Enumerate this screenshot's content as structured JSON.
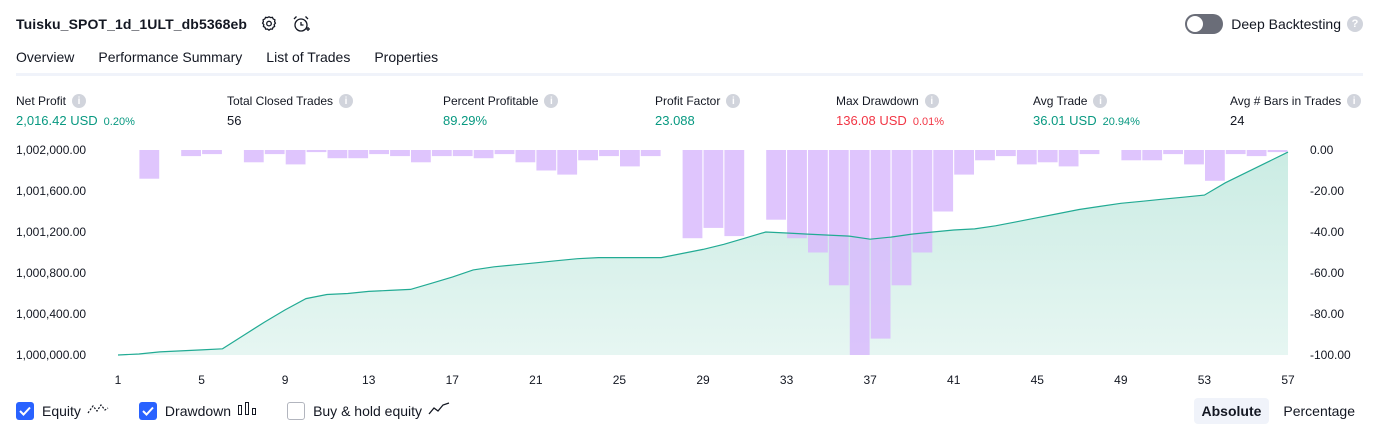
{
  "header": {
    "title": "Tuisku_SPOT_1d_1ULT_db5368eb",
    "settings_icon": "gear-icon",
    "alert_icon": "alarm-clock-plus-icon"
  },
  "deep_backtesting": {
    "label": "Deep Backtesting",
    "enabled": false,
    "help": "?"
  },
  "tabs": [
    {
      "label": "Overview",
      "active": true
    },
    {
      "label": "Performance Summary"
    },
    {
      "label": "List of Trades"
    },
    {
      "label": "Properties"
    }
  ],
  "metrics": {
    "net_profit": {
      "label": "Net Profit",
      "value": "2,016.42 USD",
      "pct": "0.20%"
    },
    "total_closed_trades": {
      "label": "Total Closed Trades",
      "value": "56"
    },
    "percent_profitable": {
      "label": "Percent Profitable",
      "value": "89.29%"
    },
    "profit_factor": {
      "label": "Profit Factor",
      "value": "23.088"
    },
    "max_drawdown": {
      "label": "Max Drawdown",
      "value": "136.08 USD",
      "pct": "0.01%"
    },
    "avg_trade": {
      "label": "Avg Trade",
      "value": "36.01 USD",
      "pct": "20.94%"
    },
    "avg_bars": {
      "label": "Avg # Bars in Trades",
      "value": "24"
    },
    "info_glyph": "i"
  },
  "legend": {
    "equity": {
      "label": "Equity",
      "checked": true
    },
    "drawdown": {
      "label": "Drawdown",
      "checked": true
    },
    "buy_hold": {
      "label": "Buy & hold equity",
      "checked": false
    }
  },
  "mode": {
    "absolute": "Absolute",
    "percentage": "Percentage",
    "active": "absolute"
  },
  "colors": {
    "equity_line": "#22ab94",
    "equity_fill": "#c8ebe2",
    "drawdown_bar": "#d8b8fc",
    "drawdown_overlap": "#b8b6ec",
    "positive": "#089981",
    "negative": "#f23645"
  },
  "chart_data": {
    "type": "area",
    "x": [
      1,
      2,
      3,
      4,
      5,
      6,
      7,
      8,
      9,
      10,
      11,
      12,
      13,
      14,
      15,
      16,
      17,
      18,
      19,
      20,
      21,
      22,
      23,
      24,
      25,
      26,
      27,
      28,
      29,
      30,
      31,
      32,
      33,
      34,
      35,
      36,
      37,
      38,
      39,
      40,
      41,
      42,
      43,
      44,
      45,
      46,
      47,
      48,
      49,
      50,
      51,
      52,
      53,
      54,
      55,
      56,
      57
    ],
    "x_ticks": [
      "1",
      "5",
      "9",
      "13",
      "17",
      "21",
      "25",
      "29",
      "33",
      "37",
      "41",
      "45",
      "49",
      "53",
      "57"
    ],
    "equity": {
      "name": "Equity",
      "ylim": [
        1000000,
        1002000
      ],
      "y_ticks": [
        "1,002,000.00",
        "1,001,600.00",
        "1,001,200.00",
        "1,000,800.00",
        "1,000,400.00",
        "1,000,000.00"
      ],
      "values": [
        1000000,
        1000010,
        1000030,
        1000040,
        1000050,
        1000060,
        1000190,
        1000320,
        1000440,
        1000550,
        1000590,
        1000600,
        1000620,
        1000630,
        1000640,
        1000700,
        1000760,
        1000830,
        1000860,
        1000880,
        1000900,
        1000920,
        1000940,
        1000950,
        1000950,
        1000950,
        1000950,
        1000990,
        1001030,
        1001080,
        1001140,
        1001200,
        1001190,
        1001180,
        1001170,
        1001160,
        1001130,
        1001150,
        1001180,
        1001200,
        1001220,
        1001230,
        1001260,
        1001300,
        1001340,
        1001380,
        1001420,
        1001450,
        1001480,
        1001500,
        1001520,
        1001540,
        1001560,
        1001680,
        1001780,
        1001880,
        1001980
      ]
    },
    "drawdown": {
      "name": "Drawdown",
      "ylim": [
        -100,
        0
      ],
      "y_ticks": [
        "0.00",
        "-20.00",
        "-40.00",
        "-60.00",
        "-80.00",
        "-100.00"
      ],
      "values": [
        0,
        -14,
        0,
        -3,
        -2,
        0,
        -6,
        -2,
        -7,
        -1,
        -4,
        -4,
        -2,
        -3,
        -6,
        -3,
        -3,
        -4,
        -2,
        -6,
        -10,
        -12,
        -5,
        -3,
        -8,
        -3,
        0,
        -43,
        -38,
        -42,
        0,
        -34,
        -43,
        -50,
        -66,
        -100,
        -92,
        -66,
        -50,
        -30,
        -12,
        -5,
        -3,
        -7,
        -6,
        -8,
        -2,
        0,
        -5,
        -5,
        -2,
        -7,
        -15,
        -2,
        -3,
        -1
      ]
    }
  }
}
